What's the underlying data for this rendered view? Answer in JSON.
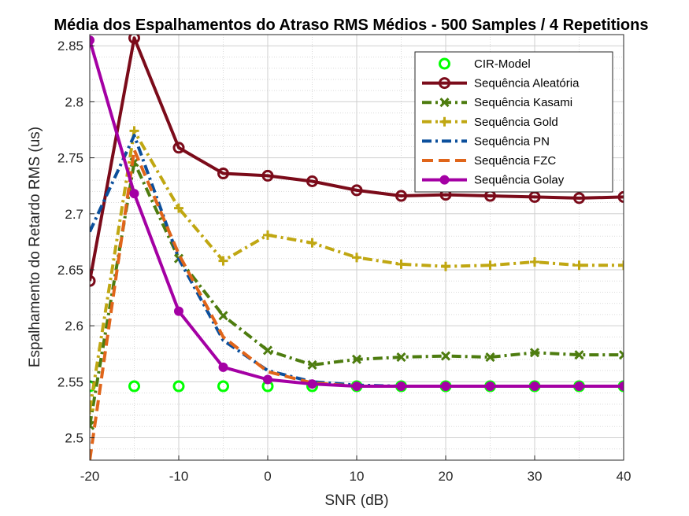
{
  "chart_data": {
    "type": "line",
    "title": "Média dos Espalhamentos do Atraso RMS Médios - 500 Samples / 4 Repetitions",
    "xlabel": "SNR (dB)",
    "ylabel": "Espalhamento do Retardo RMS (us)",
    "xlim": [
      -20,
      40
    ],
    "ylim": [
      2.48,
      2.86
    ],
    "xticks": [
      -20,
      -10,
      0,
      10,
      20,
      30,
      40
    ],
    "yticks": [
      2.5,
      2.55,
      2.6,
      2.65,
      2.7,
      2.75,
      2.8,
      2.85
    ],
    "grid": true,
    "minor_grid": true,
    "legend_position": "top-right",
    "x": [
      -20,
      -15,
      -10,
      -5,
      0,
      5,
      10,
      15,
      20,
      25,
      30,
      35,
      40
    ],
    "series": [
      {
        "name": "CIR-Model",
        "color": "#00ff00",
        "line": "none",
        "marker": "circle-open",
        "values": [
          2.546,
          2.546,
          2.546,
          2.546,
          2.546,
          2.546,
          2.546,
          2.546,
          2.546,
          2.546,
          2.546,
          2.546,
          2.546
        ]
      },
      {
        "name": "Sequência Aleatória",
        "color": "#7b0b1a",
        "line": "solid",
        "marker": "circle-open",
        "values": [
          2.64,
          2.857,
          2.759,
          2.736,
          2.734,
          2.729,
          2.721,
          2.716,
          2.717,
          2.716,
          2.715,
          2.714,
          2.715
        ]
      },
      {
        "name": "Sequência Kasami",
        "color": "#4d7c0f",
        "line": "dashdot",
        "marker": "x",
        "values": [
          2.511,
          2.746,
          2.66,
          2.609,
          2.578,
          2.565,
          2.57,
          2.572,
          2.573,
          2.572,
          2.576,
          2.574,
          2.574
        ]
      },
      {
        "name": "Sequência Gold",
        "color": "#c0a712",
        "line": "dashdot",
        "marker": "plus",
        "values": [
          2.525,
          2.774,
          2.705,
          2.658,
          2.681,
          2.674,
          2.661,
          2.655,
          2.653,
          2.654,
          2.657,
          2.654,
          2.654
        ]
      },
      {
        "name": "Sequência PN",
        "color": "#0b4f9c",
        "line": "dashdot",
        "marker": "none",
        "values": [
          2.684,
          2.77,
          2.66,
          2.587,
          2.56,
          2.55,
          2.547,
          2.546,
          2.546,
          2.546,
          2.546,
          2.546,
          2.546
        ]
      },
      {
        "name": "Sequência FZC",
        "color": "#e0651a",
        "line": "dashed",
        "marker": "none",
        "values": [
          2.48,
          2.757,
          2.664,
          2.59,
          2.559,
          2.549,
          2.546,
          2.546,
          2.546,
          2.546,
          2.546,
          2.546,
          2.546
        ]
      },
      {
        "name": "Sequência Golay",
        "color": "#a400a4",
        "line": "solid",
        "marker": "circle-filled",
        "values": [
          2.855,
          2.718,
          2.613,
          2.563,
          2.552,
          2.548,
          2.546,
          2.546,
          2.546,
          2.546,
          2.546,
          2.546,
          2.546
        ]
      }
    ]
  }
}
